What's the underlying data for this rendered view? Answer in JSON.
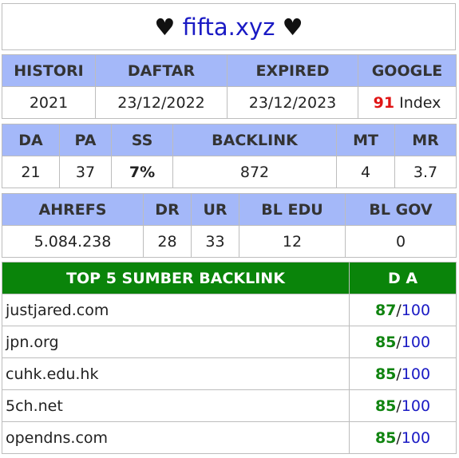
{
  "title": {
    "left_heart": "♥",
    "site": "fifta.xyz",
    "right_heart": "♥"
  },
  "overview": {
    "headers": [
      "HISTORI",
      "DAFTAR",
      "EXPIRED",
      "GOOGLE"
    ],
    "histori": "2021",
    "daftar": "23/12/2022",
    "expired": "23/12/2023",
    "google_count": "91",
    "google_suffix": "Index"
  },
  "moz": {
    "headers": [
      "DA",
      "PA",
      "SS",
      "BACKLINK",
      "MT",
      "MR"
    ],
    "da": "21",
    "pa": "37",
    "ss": "7%",
    "backlink": "872",
    "mt": "4",
    "mr": "3.7"
  },
  "ahrefs": {
    "headers": [
      "AHREFS",
      "DR",
      "UR",
      "BL EDU",
      "BL GOV"
    ],
    "ahrefs": "5.084.238",
    "dr": "28",
    "ur": "33",
    "bl_edu": "12",
    "bl_gov": "0"
  },
  "top_backlinks": {
    "header_source": "TOP 5 SUMBER BACKLINK",
    "header_da": "D A",
    "rows": [
      {
        "domain": "justjared.com",
        "da": "87",
        "sep": "/",
        "max": "100"
      },
      {
        "domain": "jpn.org",
        "da": "85",
        "sep": "/",
        "max": "100"
      },
      {
        "domain": "cuhk.edu.hk",
        "da": "85",
        "sep": "/",
        "max": "100"
      },
      {
        "domain": "5ch.net",
        "da": "85",
        "sep": "/",
        "max": "100"
      },
      {
        "domain": "opendns.com",
        "da": "85",
        "sep": "/",
        "max": "100"
      }
    ]
  },
  "colors": {
    "header_blue": "#a4b8f9",
    "header_green": "#0a840a",
    "accent_red": "#e01515",
    "accent_green": "#108410",
    "link_blue": "#1a1ac4"
  }
}
